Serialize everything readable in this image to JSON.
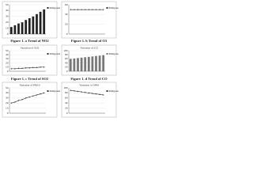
{
  "chart_data": [
    {
      "type": "bar",
      "caption": "Figure 1. a Trend of NO2",
      "categories": [
        null,
        null,
        null,
        null,
        null,
        null,
        null,
        null,
        null,
        null
      ],
      "series": [
        {
          "name": "Mitigated",
          "color": "#222222",
          "values": [
            12,
            15,
            18,
            20,
            24,
            27,
            30,
            34,
            38,
            42
          ]
        }
      ],
      "ylim": [
        0,
        50
      ],
      "yticks": [
        0,
        10,
        20,
        30,
        40,
        50
      ],
      "grid": true
    },
    {
      "type": "line",
      "caption": "Figure 1. b Trend of O3",
      "categories": [
        null,
        null,
        null,
        null,
        null,
        null,
        null,
        null,
        null,
        null
      ],
      "series": [
        {
          "name": "Mitigated",
          "color": "#333333",
          "values": [
            50,
            50,
            50,
            50,
            50,
            50,
            50,
            50,
            50,
            50
          ]
        }
      ],
      "ylim": [
        0,
        60
      ],
      "yticks": [
        0,
        20,
        40,
        60
      ],
      "grid": true
    },
    {
      "type": "line",
      "title": "Variation of SO2",
      "caption": "Figure 1. c Trend of SO2",
      "categories": [
        null,
        null,
        null,
        null,
        null,
        null,
        null,
        null,
        null,
        null
      ],
      "series": [
        {
          "name": "Mitigated",
          "color": "#333333",
          "values": [
            6,
            6,
            7,
            7,
            8,
            8,
            9,
            9,
            10,
            10
          ]
        }
      ],
      "ylim": [
        0,
        50
      ],
      "yticks": [
        0,
        10,
        20,
        30,
        40,
        50
      ],
      "grid": true
    },
    {
      "type": "bar",
      "title": "Variation of CO",
      "caption": "Figure 1. d Trend of CO",
      "categories": [
        null,
        null,
        null,
        null,
        null,
        null,
        null,
        null,
        null,
        null
      ],
      "series": [
        {
          "name": "Mitigated",
          "color": "#777777",
          "values": [
            60,
            62,
            64,
            66,
            68,
            70,
            72,
            74,
            76,
            78
          ]
        }
      ],
      "ylim": [
        0,
        100
      ],
      "yticks": [
        0,
        20,
        40,
        60,
        80,
        100
      ],
      "grid": true
    },
    {
      "type": "line",
      "title": "Variation of PM10",
      "categories": [
        null,
        null,
        null,
        null,
        null,
        null,
        null,
        null,
        null,
        null
      ],
      "series": [
        {
          "name": "Mitigated",
          "color": "#333333",
          "values": [
            20,
            22,
            25,
            27,
            30,
            32,
            34,
            36,
            38,
            40
          ]
        }
      ],
      "ylim": [
        0,
        50
      ],
      "yticks": [
        0,
        10,
        20,
        30,
        40,
        50
      ],
      "grid": true
    },
    {
      "type": "line",
      "title": "Variation of SPM",
      "categories": [
        null,
        null,
        null,
        null,
        null,
        null,
        null,
        null,
        null,
        null
      ],
      "series": [
        {
          "name": "Mitigated",
          "color": "#333333",
          "values": [
            90,
            88,
            86,
            84,
            82,
            80,
            78,
            76,
            74,
            72
          ]
        }
      ],
      "ylim": [
        0,
        100
      ],
      "yticks": [
        0,
        20,
        40,
        60,
        80,
        100
      ],
      "grid": true
    }
  ]
}
